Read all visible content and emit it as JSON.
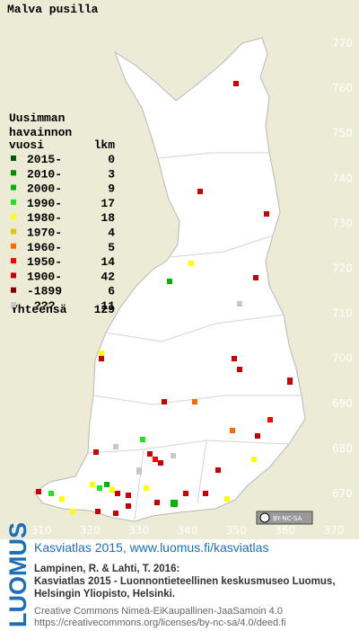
{
  "title": "Malva pusilla",
  "legend": {
    "heading": [
      "Uusimman",
      "havainnon"
    ],
    "col_year": "vuosi",
    "col_count": "lkm",
    "rows": [
      {
        "label": "2015-",
        "count": 0,
        "color": "#005a00"
      },
      {
        "label": "2010-",
        "count": 3,
        "color": "#008a00"
      },
      {
        "label": "2000-",
        "count": 9,
        "color": "#00b400"
      },
      {
        "label": "1990-",
        "count": 17,
        "color": "#22e022"
      },
      {
        "label": "1980-",
        "count": 18,
        "color": "#ffff00"
      },
      {
        "label": "1970-",
        "count": 4,
        "color": "#e6c200"
      },
      {
        "label": "1960-",
        "count": 5,
        "color": "#ff6a00"
      },
      {
        "label": "1950-",
        "count": 14,
        "color": "#ff0000"
      },
      {
        "label": "1900-",
        "count": 42,
        "color": "#c80000"
      },
      {
        "label": "-1899",
        "count": 6,
        "color": "#7a0000"
      },
      {
        "label": "???",
        "count": 11,
        "color": "#c8c8c8"
      }
    ],
    "total_label": "Yhteensä",
    "total": 129
  },
  "grid": {
    "y_labels": [
      770,
      760,
      750,
      740,
      730,
      720,
      710,
      700,
      690,
      680,
      670
    ],
    "x_labels": [
      310,
      320,
      330,
      340,
      350,
      360,
      370
    ]
  },
  "license_badge": "BY-NC-SA",
  "footer": {
    "logo": "LUOMUS",
    "headline": "Kasviatlas 2015, www.luomus.fi/kasviatlas",
    "citation": [
      "Lampinen, R. & Lahti, T. 2016:",
      "Kasviatlas 2015 - Luonnontieteellinen keskusmuseo Luomus,",
      "Helsingin Yliopisto, Helsinki."
    ],
    "license": [
      "Creative Commons Nimeä-EiKaupallinen-JaaSamoin 4.0",
      "https://creativecommons.org/licenses/by-nc-sa/4.0/deed.fi"
    ]
  }
}
